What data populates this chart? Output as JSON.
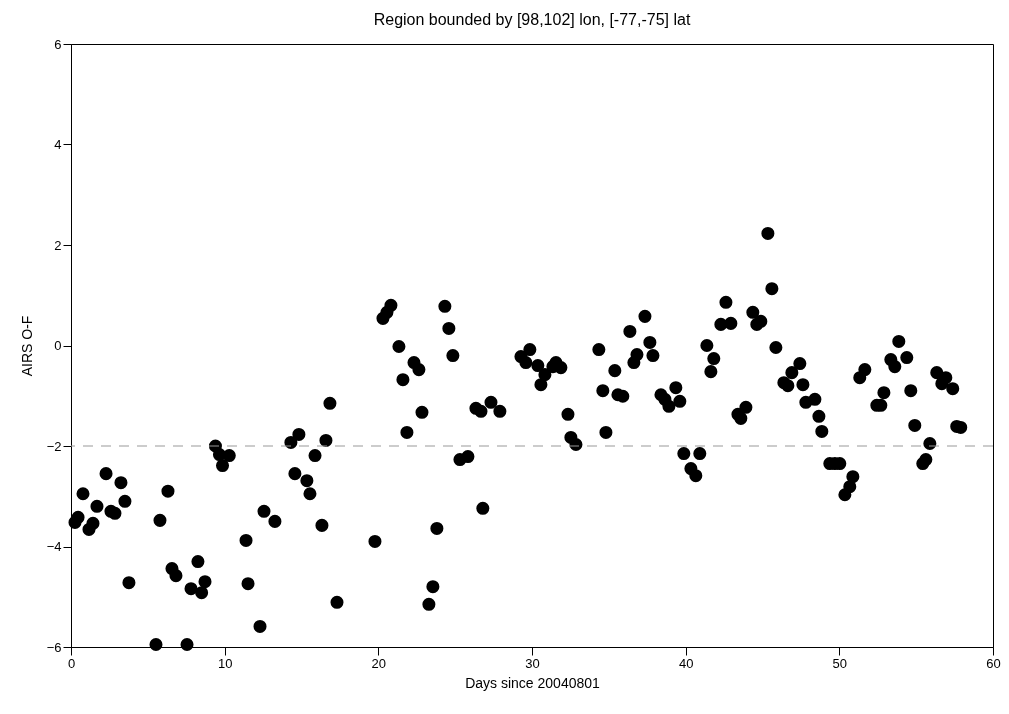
{
  "chart_data": {
    "type": "scatter",
    "title": "Region bounded by [98,102] lon, [-77,-75] lat",
    "xlabel": "Days since 20040801",
    "ylabel": "AIRS O-F",
    "marker": "circle",
    "grid": false,
    "legend": false,
    "xlim": [
      0,
      60
    ],
    "xticks": [
      0,
      10,
      20,
      30,
      40,
      50,
      60
    ],
    "ylim": [
      -6,
      6
    ],
    "yticks": [
      -6,
      -4,
      -2,
      0,
      2,
      4,
      6
    ],
    "ref_lines": [
      {
        "axis": "y",
        "value": -2,
        "color": "#999999",
        "line_style": "dashed"
      }
    ],
    "series": [
      {
        "color": "#000000",
        "x": [
          0.26,
          0.46,
          0.78,
          1.17,
          1.43,
          1.69,
          2.28,
          2.6,
          2.86,
          3.25,
          3.51,
          3.77,
          5.53,
          5.79,
          6.31,
          6.57,
          6.83,
          7.55,
          7.81,
          8.26,
          8.5,
          8.72,
          9.4,
          9.66,
          9.86,
          10.3,
          11.39,
          11.52,
          12.3,
          12.56,
          13.27,
          14.31,
          14.57,
          14.83,
          15.35,
          15.55,
          15.88,
          16.33,
          16.59,
          16.85,
          17.31,
          19.78,
          20.3,
          20.56,
          20.82,
          21.34,
          21.6,
          21.86,
          22.32,
          22.64,
          22.84,
          23.29,
          23.55,
          23.81,
          24.33,
          24.59,
          24.85,
          25.31,
          25.83,
          26.35,
          26.68,
          26.8,
          27.33,
          27.91,
          29.28,
          29.6,
          29.86,
          30.38,
          30.58,
          30.84,
          31.36,
          31.56,
          31.88,
          32.34,
          32.53,
          32.86,
          34.35,
          34.61,
          34.81,
          35.39,
          35.59,
          35.91,
          36.37,
          36.63,
          36.83,
          37.35,
          37.67,
          37.87,
          38.39,
          38.65,
          38.91,
          39.36,
          39.62,
          39.88,
          40.34,
          40.66,
          40.92,
          41.38,
          41.64,
          41.83,
          42.29,
          42.62,
          42.94,
          43.4,
          43.59,
          43.92,
          44.37,
          44.63,
          44.89,
          45.35,
          45.61,
          45.87,
          46.39,
          46.65,
          46.91,
          47.43,
          47.63,
          47.82,
          48.41,
          48.67,
          48.86,
          49.38,
          49.71,
          50.03,
          50.36,
          50.68,
          50.88,
          51.33,
          51.66,
          52.44,
          52.7,
          52.9,
          53.35,
          53.61,
          53.87,
          54.39,
          54.65,
          54.91,
          55.43,
          55.63,
          55.89,
          56.34,
          56.67,
          56.93,
          57.38,
          57.64,
          57.9
        ],
        "values": [
          -3.52,
          -3.42,
          -2.95,
          -3.66,
          -3.54,
          -3.2,
          -2.55,
          -3.3,
          -3.34,
          -2.73,
          -3.1,
          -4.72,
          -5.95,
          -3.48,
          -2.9,
          -4.44,
          -4.58,
          -5.95,
          -4.84,
          -4.3,
          -4.92,
          -4.7,
          -2.0,
          -2.17,
          -2.39,
          -2.19,
          -3.88,
          -4.74,
          -5.59,
          -3.3,
          -3.5,
          -1.93,
          -2.55,
          -1.77,
          -2.69,
          -2.95,
          -2.19,
          -3.58,
          -1.89,
          -1.15,
          -5.11,
          -3.9,
          0.54,
          0.66,
          0.8,
          -0.02,
          -0.68,
          -1.73,
          -0.34,
          -0.48,
          -1.33,
          -5.15,
          -4.8,
          -3.64,
          0.78,
          0.34,
          -0.2,
          -2.27,
          -2.21,
          -1.25,
          -1.31,
          -3.24,
          -1.13,
          -1.31,
          -0.22,
          -0.34,
          -0.08,
          -0.4,
          -0.78,
          -0.58,
          -0.42,
          -0.34,
          -0.44,
          -1.37,
          -1.83,
          -1.97,
          -0.08,
          -0.9,
          -1.73,
          -0.5,
          -0.98,
          -1.01,
          0.28,
          -0.34,
          -0.18,
          0.58,
          0.06,
          -0.2,
          -0.98,
          -1.07,
          -1.21,
          -0.84,
          -1.11,
          -2.15,
          -2.45,
          -2.59,
          -2.15,
          0.0,
          -0.52,
          -0.26,
          0.42,
          0.86,
          0.44,
          -1.37,
          -1.45,
          -1.23,
          0.66,
          0.42,
          0.48,
          2.23,
          1.13,
          -0.04,
          -0.74,
          -0.8,
          -0.54,
          -0.36,
          -0.78,
          -1.13,
          -1.07,
          -1.41,
          -1.71,
          -2.35,
          -2.35,
          -2.35,
          -2.97,
          -2.81,
          -2.61,
          -0.64,
          -0.48,
          -1.19,
          -1.19,
          -0.94,
          -0.28,
          -0.42,
          0.08,
          -0.24,
          -0.9,
          -1.59,
          -2.35,
          -2.27,
          -1.95,
          -0.54,
          -0.76,
          -0.64,
          -0.86,
          -1.61,
          -1.63
        ]
      }
    ]
  }
}
